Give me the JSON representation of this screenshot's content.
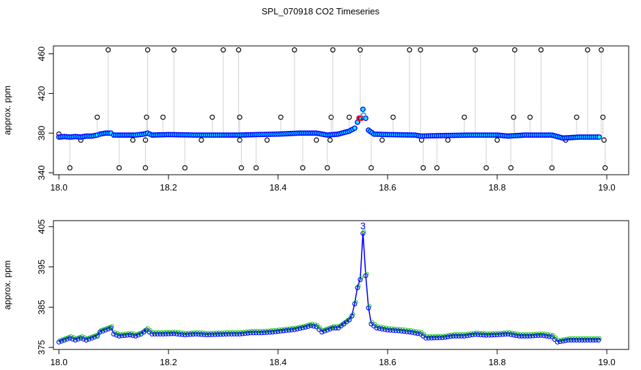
{
  "page": {
    "title": "SPL_070918  CO2 Timeseries"
  },
  "chart_data": [
    {
      "type": "scatter",
      "title": "",
      "xlabel": "",
      "ylabel": "approx. ppm",
      "xlim": [
        17.99,
        19.04
      ],
      "ylim": [
        338,
        468
      ],
      "xticks": [
        18.0,
        18.2,
        18.4,
        18.6,
        18.8,
        19.0
      ],
      "yticks": [
        340,
        380,
        420,
        460
      ],
      "xtick_labels": [
        "18.0",
        "18.2",
        "18.4",
        "18.6",
        "18.8",
        "19.0"
      ],
      "ytick_labels": [
        "340",
        "380",
        "420",
        "460"
      ],
      "grid": false,
      "baseline_points": [
        [
          18.0,
          376
        ],
        [
          18.01,
          376.5
        ],
        [
          18.02,
          376
        ],
        [
          18.03,
          376.5
        ],
        [
          18.04,
          376
        ],
        [
          18.05,
          377
        ],
        [
          18.06,
          377
        ],
        [
          18.07,
          378
        ],
        [
          18.075,
          379
        ],
        [
          18.085,
          380
        ],
        [
          18.095,
          380
        ],
        [
          18.1,
          378
        ],
        [
          18.12,
          378
        ],
        [
          18.14,
          378
        ],
        [
          18.155,
          379
        ],
        [
          18.162,
          380
        ],
        [
          18.17,
          378
        ],
        [
          18.2,
          378.5
        ],
        [
          18.25,
          378
        ],
        [
          18.3,
          378
        ],
        [
          18.33,
          378
        ],
        [
          18.36,
          378.5
        ],
        [
          18.4,
          379
        ],
        [
          18.44,
          380
        ],
        [
          18.47,
          380
        ],
        [
          18.49,
          378
        ],
        [
          18.51,
          379
        ],
        [
          18.53,
          382
        ],
        [
          18.54,
          385
        ],
        [
          18.545,
          391
        ],
        [
          18.55,
          395
        ],
        [
          18.555,
          404
        ],
        [
          18.56,
          395
        ],
        [
          18.565,
          383
        ],
        [
          18.575,
          379
        ],
        [
          18.6,
          378.5
        ],
        [
          18.65,
          378
        ],
        [
          18.66,
          377
        ],
        [
          18.7,
          377.5
        ],
        [
          18.75,
          378
        ],
        [
          18.8,
          378
        ],
        [
          18.82,
          377
        ],
        [
          18.85,
          378
        ],
        [
          18.9,
          378
        ],
        [
          18.92,
          375
        ],
        [
          18.95,
          376
        ],
        [
          18.99,
          376
        ]
      ],
      "spike_points": [
        [
          18.0,
          378,
          379
        ],
        [
          18.02,
          378,
          345
        ],
        [
          18.04,
          376,
          373
        ],
        [
          18.07,
          378,
          396
        ],
        [
          18.09,
          380,
          464
        ],
        [
          18.11,
          378,
          345
        ],
        [
          18.135,
          378,
          373
        ],
        [
          18.158,
          379,
          345
        ],
        [
          18.16,
          379,
          396
        ],
        [
          18.162,
          380,
          464
        ],
        [
          18.158,
          379,
          373
        ],
        [
          18.19,
          378,
          396
        ],
        [
          18.21,
          378,
          464
        ],
        [
          18.23,
          378,
          345
        ],
        [
          18.26,
          378,
          373
        ],
        [
          18.28,
          378,
          396
        ],
        [
          18.3,
          378,
          464
        ],
        [
          18.328,
          378,
          464
        ],
        [
          18.33,
          378,
          396
        ],
        [
          18.33,
          378,
          373
        ],
        [
          18.333,
          378,
          345
        ],
        [
          18.36,
          378,
          345
        ],
        [
          18.38,
          378,
          373
        ],
        [
          18.405,
          379,
          396
        ],
        [
          18.43,
          379,
          464
        ],
        [
          18.445,
          380,
          345
        ],
        [
          18.47,
          380,
          373
        ],
        [
          18.49,
          378,
          345
        ],
        [
          18.495,
          378,
          373
        ],
        [
          18.497,
          378,
          396
        ],
        [
          18.5,
          378,
          464
        ],
        [
          18.53,
          382,
          396
        ],
        [
          18.55,
          390,
          464
        ],
        [
          18.57,
          379,
          345
        ],
        [
          18.59,
          379,
          373
        ],
        [
          18.61,
          379,
          396
        ],
        [
          18.64,
          378,
          464
        ],
        [
          18.66,
          378,
          464
        ],
        [
          18.662,
          377,
          373
        ],
        [
          18.665,
          377,
          345
        ],
        [
          18.69,
          377,
          345
        ],
        [
          18.71,
          378,
          373
        ],
        [
          18.74,
          378,
          396
        ],
        [
          18.76,
          378,
          464
        ],
        [
          18.78,
          378,
          345
        ],
        [
          18.8,
          378,
          373
        ],
        [
          18.825,
          377,
          345
        ],
        [
          18.83,
          378,
          396
        ],
        [
          18.832,
          378,
          464
        ],
        [
          18.86,
          378,
          396
        ],
        [
          18.88,
          378,
          464
        ],
        [
          18.9,
          378,
          345
        ],
        [
          18.925,
          375,
          373
        ],
        [
          18.945,
          376,
          396
        ],
        [
          18.965,
          376,
          464
        ],
        [
          18.99,
          376,
          464
        ],
        [
          18.993,
          376,
          396
        ],
        [
          18.995,
          376,
          373
        ],
        [
          18.997,
          376,
          345
        ]
      ],
      "highlight_points": [
        [
          18.548,
          395,
          "#ff0000"
        ],
        [
          18.552,
          395,
          "#ff0000"
        ],
        [
          18.556,
          398,
          "#00a0ff"
        ]
      ],
      "colors": {
        "primary": "#0000ff",
        "secondary": "#00ffff",
        "accent": "#ff0000",
        "stroke": "#000000",
        "drop": "#a0a0a0"
      }
    },
    {
      "type": "line",
      "title": "",
      "xlabel": "",
      "ylabel": "approx. ppm",
      "xlim": [
        17.99,
        19.04
      ],
      "ylim": [
        374.5,
        406.5
      ],
      "xticks": [
        18.0,
        18.2,
        18.4,
        18.6,
        18.8,
        19.0
      ],
      "yticks": [
        375,
        385,
        395,
        405
      ],
      "xtick_labels": [
        "18.0",
        "18.2",
        "18.4",
        "18.6",
        "18.8",
        "19.0"
      ],
      "ytick_labels": [
        "375",
        "385",
        "395",
        "405"
      ],
      "grid": false,
      "peak_label": "3",
      "peak_point": [
        18.555,
        404
      ],
      "series": [
        {
          "color": "#0000ff",
          "points": [
            [
              18.0,
              376.5
            ],
            [
              18.01,
              377
            ],
            [
              18.02,
              377.5
            ],
            [
              18.03,
              377
            ],
            [
              18.04,
              377.5
            ],
            [
              18.05,
              377
            ],
            [
              18.06,
              377.5
            ],
            [
              18.07,
              378
            ],
            [
              18.075,
              379
            ],
            [
              18.085,
              379.5
            ],
            [
              18.095,
              380
            ],
            [
              18.1,
              378.5
            ],
            [
              18.11,
              378
            ],
            [
              18.13,
              378.3
            ],
            [
              18.14,
              378
            ],
            [
              18.15,
              378.5
            ],
            [
              18.16,
              379.5
            ],
            [
              18.17,
              378.5
            ],
            [
              18.19,
              378.5
            ],
            [
              18.21,
              378.6
            ],
            [
              18.23,
              378.3
            ],
            [
              18.25,
              378.5
            ],
            [
              18.27,
              378.3
            ],
            [
              18.29,
              378.4
            ],
            [
              18.31,
              378.5
            ],
            [
              18.33,
              378.5
            ],
            [
              18.35,
              378.8
            ],
            [
              18.37,
              378.8
            ],
            [
              18.39,
              379
            ],
            [
              18.41,
              379.3
            ],
            [
              18.43,
              379.6
            ],
            [
              18.45,
              380.2
            ],
            [
              18.46,
              380.6
            ],
            [
              18.47,
              380.3
            ],
            [
              18.48,
              379
            ],
            [
              18.5,
              380
            ],
            [
              18.51,
              380
            ],
            [
              18.52,
              381
            ],
            [
              18.53,
              382
            ],
            [
              18.535,
              383
            ],
            [
              18.54,
              386
            ],
            [
              18.545,
              390
            ],
            [
              18.55,
              392
            ],
            [
              18.555,
              403.5
            ],
            [
              18.56,
              393
            ],
            [
              18.565,
              385
            ],
            [
              18.57,
              381
            ],
            [
              18.58,
              380
            ],
            [
              18.6,
              379.5
            ],
            [
              18.62,
              379.3
            ],
            [
              18.64,
              379
            ],
            [
              18.66,
              378.5
            ],
            [
              18.67,
              377.5
            ],
            [
              18.7,
              377.6
            ],
            [
              18.72,
              378
            ],
            [
              18.74,
              378
            ],
            [
              18.76,
              378.4
            ],
            [
              18.78,
              378.2
            ],
            [
              18.8,
              378.3
            ],
            [
              18.82,
              378.5
            ],
            [
              18.84,
              378
            ],
            [
              18.86,
              378
            ],
            [
              18.88,
              378.2
            ],
            [
              18.9,
              377.8
            ],
            [
              18.91,
              376.5
            ],
            [
              18.93,
              377
            ],
            [
              18.95,
              377
            ],
            [
              18.97,
              377
            ],
            [
              18.99,
              377
            ]
          ]
        }
      ],
      "colors": {
        "primary": "#0000ff",
        "secondary": "#00c000",
        "accent": "#ff0000",
        "marker": "#0000ff"
      }
    }
  ]
}
